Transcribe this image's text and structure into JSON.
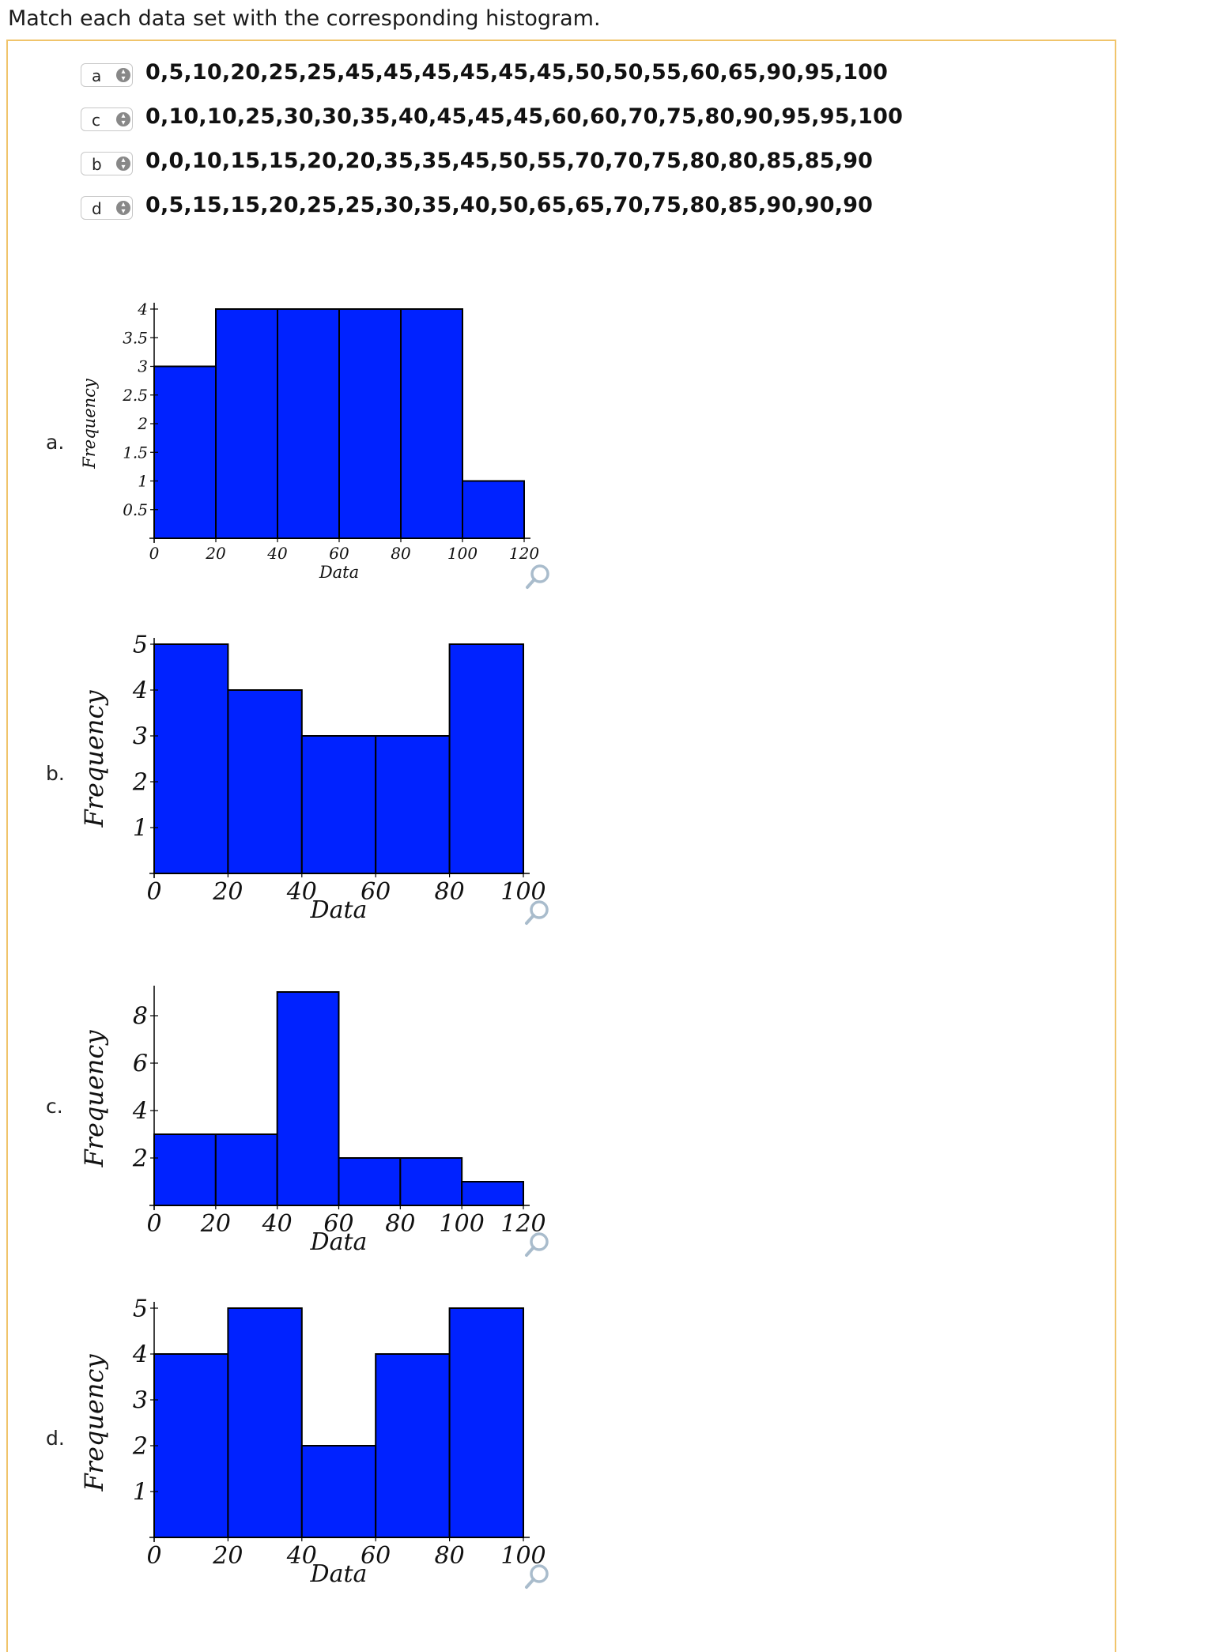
{
  "prompt": "Match each data set with the corresponding histogram.",
  "matches": [
    {
      "selected": "a",
      "dataset": "0,5,10,20,25,25,45,45,45,45,45,45,50,50,55,60,65,90,95,100"
    },
    {
      "selected": "c",
      "dataset": "0,10,10,25,30,30,35,40,45,45,45,60,60,70,75,80,90,95,95,100"
    },
    {
      "selected": "b",
      "dataset": "0,0,10,15,15,20,20,35,35,45,50,55,70,70,75,80,80,85,85,90"
    },
    {
      "selected": "d",
      "dataset": "0,5,15,15,20,25,25,30,35,40,50,65,65,70,75,80,85,90,90,90"
    }
  ],
  "histogram_labels": [
    "a.",
    "b.",
    "c.",
    "d."
  ],
  "colors": {
    "bar": "#0022ff",
    "axis": "#000000",
    "zoom_icon": "#a9bccc",
    "panel_border": "#f0c46b"
  },
  "chart_data": [
    {
      "type": "bar",
      "label": "a.",
      "xlabel": "Data",
      "ylabel": "Frequency",
      "bin_edges": [
        0,
        20,
        40,
        60,
        80,
        100,
        120
      ],
      "values": [
        3,
        4,
        4,
        4,
        4,
        1
      ],
      "xlim": [
        0,
        120
      ],
      "ylim": [
        0,
        4
      ],
      "xticks": [
        "0",
        "20",
        "40",
        "60",
        "80",
        "100",
        "120"
      ],
      "yticks": [
        "0.5",
        "1",
        "1.5",
        "2",
        "2.5",
        "3",
        "3.5",
        "4"
      ]
    },
    {
      "type": "bar",
      "label": "b.",
      "xlabel": "Data",
      "ylabel": "Frequency",
      "bin_edges": [
        0,
        20,
        40,
        60,
        80,
        100
      ],
      "values": [
        5,
        4,
        3,
        3,
        5
      ],
      "xlim": [
        0,
        100
      ],
      "ylim": [
        0,
        5
      ],
      "xticks": [
        "0",
        "20",
        "40",
        "60",
        "80",
        "100"
      ],
      "yticks": [
        "1",
        "2",
        "3",
        "4",
        "5"
      ]
    },
    {
      "type": "bar",
      "label": "c.",
      "xlabel": "Data",
      "ylabel": "Frequency",
      "bin_edges": [
        0,
        20,
        40,
        60,
        80,
        100,
        120
      ],
      "values": [
        3,
        3,
        9,
        2,
        2,
        1
      ],
      "xlim": [
        0,
        120
      ],
      "ylim": [
        0,
        9
      ],
      "xticks": [
        "0",
        "20",
        "40",
        "60",
        "80",
        "100",
        "120"
      ],
      "yticks": [
        "2",
        "4",
        "6",
        "8"
      ]
    },
    {
      "type": "bar",
      "label": "d.",
      "xlabel": "Data",
      "ylabel": "Frequency",
      "bin_edges": [
        0,
        20,
        40,
        60,
        80,
        100
      ],
      "values": [
        4,
        5,
        2,
        4,
        5
      ],
      "xlim": [
        0,
        100
      ],
      "ylim": [
        0,
        5
      ],
      "xticks": [
        "0",
        "20",
        "40",
        "60",
        "80",
        "100"
      ],
      "yticks": [
        "1",
        "2",
        "3",
        "4",
        "5"
      ]
    }
  ]
}
